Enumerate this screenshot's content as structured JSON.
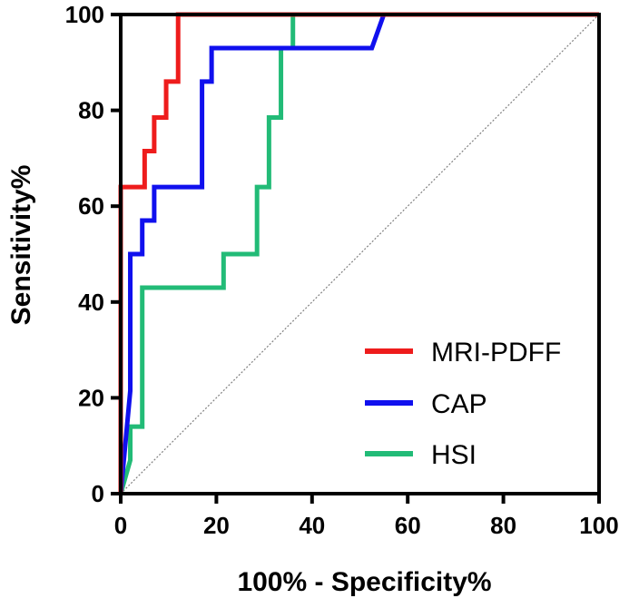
{
  "chart_data": {
    "type": "line",
    "title": "",
    "xlabel": "100% - Specificity%",
    "ylabel": "Sensitivity%",
    "xlim": [
      0,
      100
    ],
    "ylim": [
      0,
      100
    ],
    "xticks": [
      0,
      20,
      40,
      60,
      80,
      100
    ],
    "yticks": [
      0,
      20,
      40,
      60,
      80,
      100
    ],
    "xtick_labels": [
      "0",
      "20",
      "40",
      "60",
      "80",
      "100"
    ],
    "ytick_labels": [
      "0",
      "20",
      "40",
      "60",
      "80",
      "100"
    ],
    "legend_position": "bottom-right",
    "reference_line": {
      "name": "chance",
      "style": "dotted",
      "color": "#808080",
      "x": [
        0,
        100
      ],
      "y": [
        0,
        100
      ]
    },
    "series": [
      {
        "name": "MRI-PDFF",
        "color": "#ee1c1c",
        "x": [
          0,
          0,
          5,
          5,
          7,
          7,
          9.5,
          9.5,
          12,
          12,
          100
        ],
        "y": [
          0,
          64,
          64,
          71.5,
          71.5,
          78.5,
          78.5,
          86,
          86,
          100,
          100
        ]
      },
      {
        "name": "CAP",
        "color": "#1010ee",
        "x": [
          0,
          2,
          2,
          4.5,
          4.5,
          7,
          7,
          9.5,
          9.5,
          17,
          17,
          19,
          19,
          52.5,
          52.5,
          55,
          55,
          100
        ],
        "y": [
          0,
          21.5,
          50,
          50,
          57,
          57,
          64,
          64,
          64,
          64,
          86,
          86,
          93,
          93,
          93,
          100,
          100,
          100
        ]
      },
      {
        "name": "HSI",
        "color": "#22bb77",
        "x": [
          0,
          2,
          2,
          4.5,
          4.5,
          21.5,
          21.5,
          28.5,
          28.5,
          31,
          31,
          33.5,
          33.5,
          36,
          36,
          100
        ],
        "y": [
          0,
          7,
          14,
          14,
          43,
          43,
          50,
          50,
          64,
          64,
          78.5,
          78.5,
          93,
          93,
          100,
          100
        ]
      }
    ]
  }
}
